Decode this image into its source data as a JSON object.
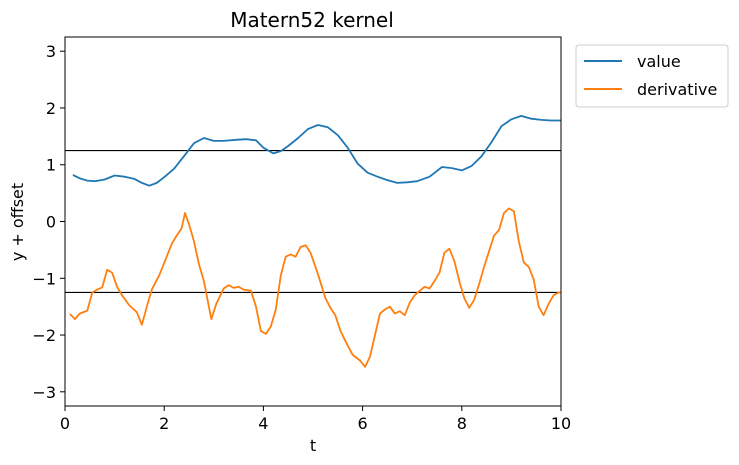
{
  "chart_data": {
    "type": "line",
    "title": "Matern52 kernel",
    "xlabel": "t",
    "ylabel": "y + offset",
    "xlim": [
      0,
      10
    ],
    "ylim": [
      -3.25,
      3.25
    ],
    "xticks": [
      "0",
      "2",
      "4",
      "6",
      "8",
      "10"
    ],
    "yticks": [
      "−3",
      "−2",
      "−1",
      "0",
      "1",
      "2",
      "3"
    ],
    "grid": false,
    "legend_position": "outside-top-right",
    "hlines": [
      1.25,
      -1.25
    ],
    "hline_color": "#000000",
    "series": [
      {
        "name": "value",
        "color": "#1f77b4",
        "x": [
          0.16,
          0.3,
          0.45,
          0.6,
          0.8,
          1.0,
          1.2,
          1.4,
          1.55,
          1.7,
          1.85,
          2.0,
          2.2,
          2.4,
          2.6,
          2.8,
          3.0,
          3.2,
          3.45,
          3.65,
          3.85,
          4.0,
          4.2,
          4.35,
          4.5,
          4.7,
          4.9,
          5.1,
          5.3,
          5.5,
          5.7,
          5.9,
          6.1,
          6.3,
          6.5,
          6.7,
          6.9,
          7.1,
          7.35,
          7.6,
          7.8,
          8.0,
          8.2,
          8.4,
          8.6,
          8.8,
          9.0,
          9.2,
          9.4,
          9.6,
          9.8,
          10.0
        ],
        "values": [
          0.82,
          0.76,
          0.72,
          0.71,
          0.74,
          0.81,
          0.79,
          0.75,
          0.68,
          0.63,
          0.68,
          0.78,
          0.93,
          1.15,
          1.38,
          1.47,
          1.42,
          1.42,
          1.44,
          1.45,
          1.43,
          1.3,
          1.2,
          1.24,
          1.33,
          1.47,
          1.63,
          1.7,
          1.66,
          1.52,
          1.3,
          1.02,
          0.86,
          0.79,
          0.73,
          0.68,
          0.69,
          0.71,
          0.79,
          0.96,
          0.94,
          0.9,
          0.98,
          1.15,
          1.4,
          1.68,
          1.8,
          1.86,
          1.81,
          1.79,
          1.78,
          1.78
        ]
      },
      {
        "name": "derivative",
        "color": "#ff7f0e",
        "x": [
          0.1,
          0.2,
          0.3,
          0.45,
          0.55,
          0.65,
          0.75,
          0.85,
          0.95,
          1.05,
          1.15,
          1.3,
          1.45,
          1.55,
          1.65,
          1.75,
          1.9,
          2.05,
          2.15,
          2.25,
          2.35,
          2.42,
          2.5,
          2.6,
          2.7,
          2.8,
          2.88,
          2.95,
          3.05,
          3.2,
          3.3,
          3.4,
          3.5,
          3.6,
          3.75,
          3.85,
          3.95,
          4.05,
          4.15,
          4.25,
          4.35,
          4.45,
          4.55,
          4.65,
          4.75,
          4.85,
          4.95,
          5.1,
          5.25,
          5.35,
          5.45,
          5.55,
          5.65,
          5.8,
          5.95,
          6.05,
          6.15,
          6.25,
          6.35,
          6.45,
          6.55,
          6.65,
          6.75,
          6.85,
          6.95,
          7.05,
          7.15,
          7.25,
          7.35,
          7.45,
          7.55,
          7.65,
          7.75,
          7.85,
          7.95,
          8.05,
          8.15,
          8.25,
          8.35,
          8.45,
          8.55,
          8.65,
          8.75,
          8.85,
          8.95,
          9.05,
          9.15,
          9.25,
          9.35,
          9.45,
          9.55,
          9.65,
          9.75,
          9.85,
          9.95,
          10.0
        ],
        "values": [
          -1.63,
          -1.72,
          -1.62,
          -1.57,
          -1.25,
          -1.2,
          -1.16,
          -0.85,
          -0.9,
          -1.15,
          -1.3,
          -1.48,
          -1.6,
          -1.82,
          -1.5,
          -1.2,
          -0.95,
          -0.62,
          -0.4,
          -0.25,
          -0.12,
          0.15,
          -0.05,
          -0.35,
          -0.75,
          -1.05,
          -1.4,
          -1.72,
          -1.45,
          -1.18,
          -1.12,
          -1.17,
          -1.15,
          -1.2,
          -1.22,
          -1.5,
          -1.93,
          -1.98,
          -1.85,
          -1.55,
          -0.95,
          -0.62,
          -0.58,
          -0.62,
          -0.45,
          -0.42,
          -0.55,
          -0.93,
          -1.35,
          -1.52,
          -1.65,
          -1.92,
          -2.1,
          -2.35,
          -2.45,
          -2.56,
          -2.38,
          -2.0,
          -1.62,
          -1.55,
          -1.5,
          -1.62,
          -1.58,
          -1.65,
          -1.43,
          -1.3,
          -1.22,
          -1.15,
          -1.18,
          -1.05,
          -0.9,
          -0.55,
          -0.48,
          -0.7,
          -1.05,
          -1.35,
          -1.52,
          -1.38,
          -1.1,
          -0.8,
          -0.52,
          -0.25,
          -0.15,
          0.15,
          0.23,
          0.18,
          -0.35,
          -0.72,
          -0.8,
          -1.02,
          -1.5,
          -1.65,
          -1.45,
          -1.3,
          -1.25,
          -1.25
        ]
      }
    ]
  }
}
